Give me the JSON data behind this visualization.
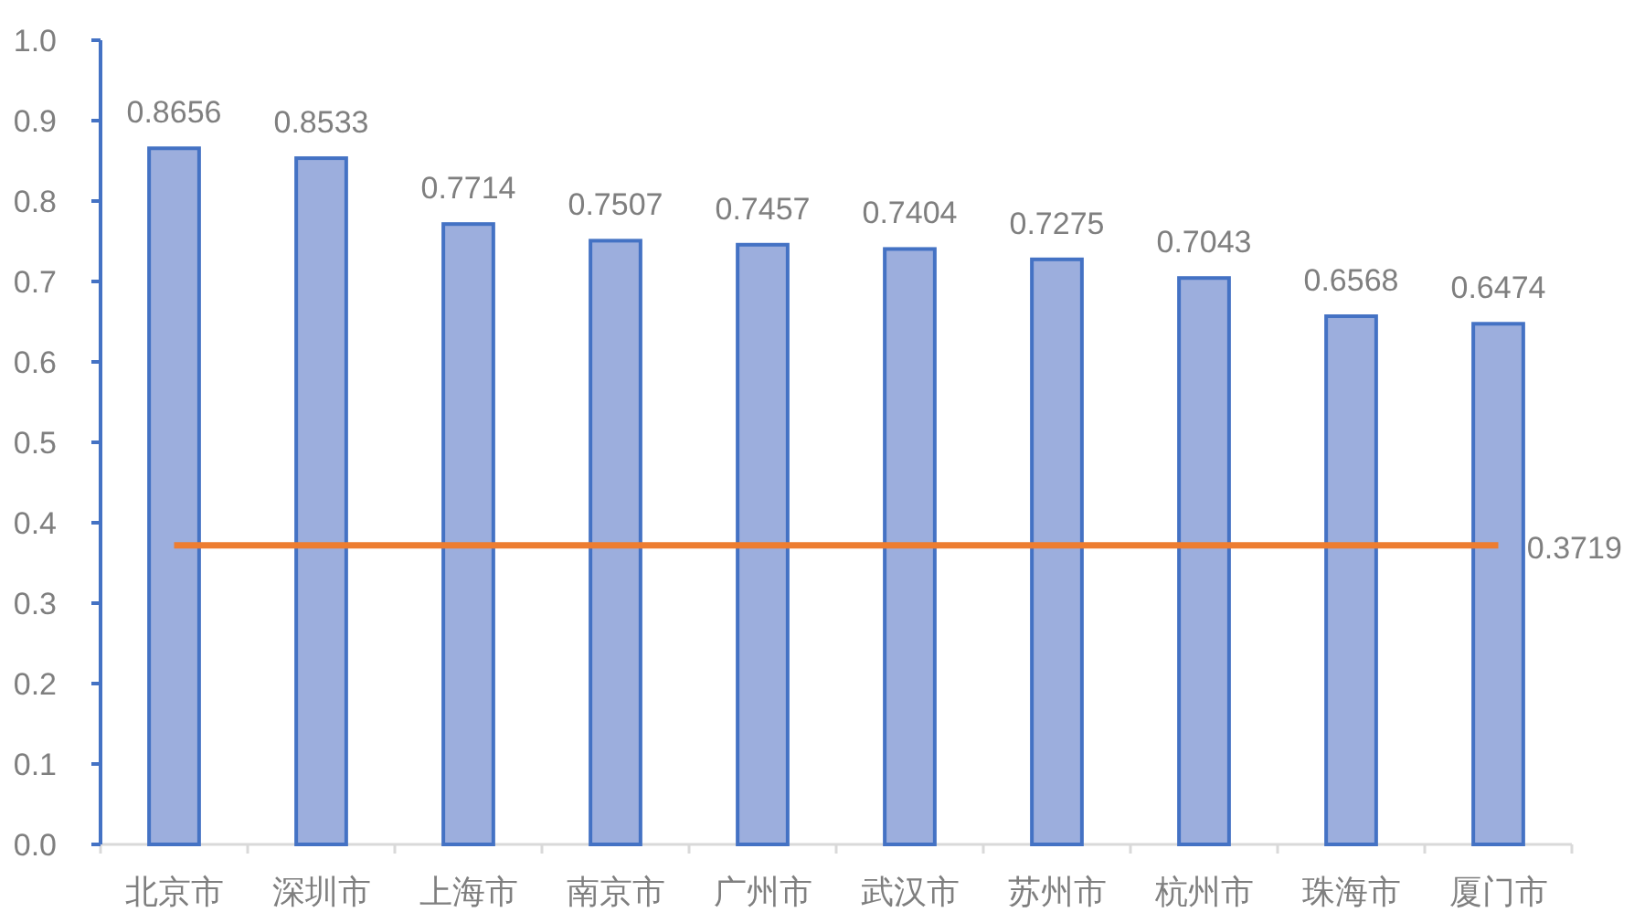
{
  "chart_data": {
    "type": "bar",
    "categories": [
      "北京市",
      "深圳市",
      "上海市",
      "南京市",
      "广州市",
      "武汉市",
      "苏州市",
      "杭州市",
      "珠海市",
      "厦门市"
    ],
    "ylim": [
      0,
      1
    ],
    "yticks": [
      {
        "value": 0,
        "label": "0.0"
      },
      0.1,
      0.2,
      0.3,
      0.4,
      0.5,
      0.6,
      0.7,
      0.8,
      0.9,
      {
        "value": 1,
        "label": "1.0"
      }
    ],
    "series": [
      {
        "color": "#9caedd",
        "values": [
          0.8656,
          0.8533,
          0.7714,
          0.7507,
          0.7457,
          0.7404,
          0.7275,
          0.7043,
          0.6568,
          0.6474
        ],
        "value_labels": [
          "0.8656",
          "0.8533",
          "0.7714",
          "0.7507",
          "0.7457",
          "0.7404",
          "0.7275",
          "0.7043",
          "0.6568",
          "0.6474"
        ]
      },
      {
        "type": "line",
        "color": "#ed7d31",
        "values": [
          0.3719,
          0.3719,
          0.3719,
          0.3719,
          0.3719,
          0.3719,
          0.3719,
          0.3719,
          0.3719,
          0.3719
        ],
        "value_labels": [
          null,
          null,
          null,
          null,
          null,
          null,
          null,
          null,
          null,
          "0.3719"
        ]
      }
    ]
  }
}
